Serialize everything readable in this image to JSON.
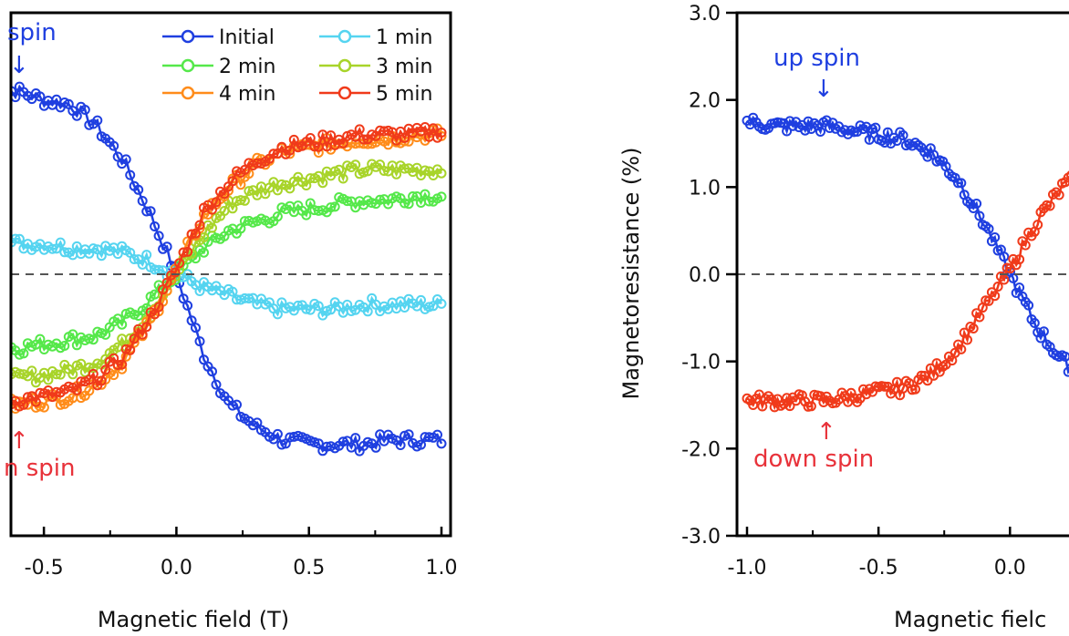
{
  "chart_data": [
    {
      "type": "scatter",
      "panel": "left",
      "xlabel": "Magnetic field (T)",
      "ylabel": "",
      "xlim": [
        -0.7,
        1.0
      ],
      "ylim": [
        -3.0,
        3.0
      ],
      "x_ticks": [
        "-0.5",
        "0.0",
        "0.5",
        "1.0"
      ],
      "zero_line": true,
      "legend": {
        "placement": "top-right",
        "entries": [
          {
            "name": "Initial",
            "color": "#1f3fe0"
          },
          {
            "name": "1 min",
            "color": "#55d4f0"
          },
          {
            "name": "2 min",
            "color": "#55e84a"
          },
          {
            "name": "3 min",
            "color": "#a8d42a"
          },
          {
            "name": "4 min",
            "color": "#ff8c1a"
          },
          {
            "name": "5 min",
            "color": "#f03a1a"
          }
        ]
      },
      "annotations": [
        {
          "text": "spin",
          "arrow": "↓",
          "color": "#1f3fe0"
        },
        {
          "text": "n spin",
          "arrow": "↑",
          "color": "#e8323a"
        }
      ],
      "series": [
        {
          "name": "Initial",
          "color": "#1f3fe0",
          "x": [
            -0.7,
            -0.6,
            -0.5,
            -0.4,
            -0.3,
            -0.2,
            -0.1,
            0.0,
            0.1,
            0.2,
            0.3,
            0.4,
            0.5,
            0.6,
            0.7,
            0.8,
            0.9,
            1.0
          ],
          "y": [
            2.1,
            2.1,
            2.0,
            1.95,
            1.7,
            1.3,
            0.7,
            0.0,
            -0.9,
            -1.5,
            -1.75,
            -1.9,
            -1.95,
            -1.95,
            -1.95,
            -1.9,
            -1.9,
            -1.9
          ]
        },
        {
          "name": "1 min",
          "color": "#55d4f0",
          "x": [
            -0.7,
            -0.6,
            -0.5,
            -0.4,
            -0.3,
            -0.2,
            -0.1,
            0.0,
            0.1,
            0.2,
            0.3,
            0.4,
            0.5,
            0.6,
            0.7,
            0.8,
            0.9,
            1.0
          ],
          "y": [
            0.4,
            0.35,
            0.35,
            0.3,
            0.3,
            0.25,
            0.15,
            0.0,
            -0.15,
            -0.25,
            -0.35,
            -0.4,
            -0.4,
            -0.4,
            -0.35,
            -0.35,
            -0.35,
            -0.35
          ]
        },
        {
          "name": "2 min",
          "color": "#55e84a",
          "x": [
            -0.7,
            -0.6,
            -0.5,
            -0.4,
            -0.3,
            -0.2,
            -0.1,
            0.0,
            0.1,
            0.2,
            0.3,
            0.4,
            0.5,
            0.6,
            0.7,
            0.8,
            0.9,
            1.0
          ],
          "y": [
            -0.8,
            -0.85,
            -0.8,
            -0.75,
            -0.7,
            -0.55,
            -0.3,
            0.0,
            0.3,
            0.5,
            0.6,
            0.7,
            0.75,
            0.8,
            0.85,
            0.85,
            0.9,
            0.9
          ]
        },
        {
          "name": "3 min",
          "color": "#a8d42a",
          "x": [
            -0.7,
            -0.6,
            -0.5,
            -0.4,
            -0.3,
            -0.2,
            -0.1,
            0.0,
            0.1,
            0.2,
            0.3,
            0.4,
            0.5,
            0.6,
            0.7,
            0.8,
            0.9,
            1.0
          ],
          "y": [
            -1.2,
            -1.2,
            -1.15,
            -1.1,
            -1.0,
            -0.8,
            -0.45,
            0.0,
            0.45,
            0.8,
            0.95,
            1.05,
            1.1,
            1.15,
            1.2,
            1.2,
            1.2,
            1.2
          ]
        },
        {
          "name": "4 min",
          "color": "#ff8c1a",
          "x": [
            -0.7,
            -0.6,
            -0.5,
            -0.4,
            -0.3,
            -0.2,
            -0.1,
            0.0,
            0.1,
            0.2,
            0.3,
            0.4,
            0.5,
            0.6,
            0.7,
            0.8,
            0.9,
            1.0
          ],
          "y": [
            -1.5,
            -1.5,
            -1.45,
            -1.4,
            -1.25,
            -1.0,
            -0.55,
            0.05,
            0.65,
            1.0,
            1.25,
            1.4,
            1.45,
            1.5,
            1.55,
            1.55,
            1.6,
            1.6
          ]
        },
        {
          "name": "5 min",
          "color": "#f03a1a",
          "x": [
            -0.7,
            -0.6,
            -0.5,
            -0.4,
            -0.3,
            -0.2,
            -0.1,
            0.0,
            0.1,
            0.2,
            0.3,
            0.4,
            0.5,
            0.6,
            0.7,
            0.8,
            0.9,
            1.0
          ],
          "y": [
            -1.45,
            -1.45,
            -1.4,
            -1.35,
            -1.2,
            -0.95,
            -0.5,
            0.05,
            0.7,
            1.05,
            1.3,
            1.45,
            1.5,
            1.55,
            1.6,
            1.6,
            1.6,
            1.65
          ]
        }
      ]
    },
    {
      "type": "scatter",
      "panel": "right",
      "xlabel": "Magnetic fielc",
      "ylabel": "Magnetoresistance (%)",
      "xlim": [
        -1.0,
        0.28
      ],
      "ylim": [
        -3.0,
        3.0
      ],
      "x_ticks": [
        "-1.0",
        "-0.5",
        "0.0"
      ],
      "y_ticks": [
        "3.0",
        "2.0",
        "1.0",
        "0.0",
        "-1.0",
        "-2.0",
        "-3.0"
      ],
      "zero_line": true,
      "annotations": [
        {
          "text": "up spin",
          "arrow": "↓",
          "color": "#1f3fe0"
        },
        {
          "text": "down spin",
          "arrow": "↑",
          "color": "#e8323a"
        }
      ],
      "series": [
        {
          "color": "#1f3fe0",
          "x": [
            -1.0,
            -0.9,
            -0.8,
            -0.7,
            -0.6,
            -0.5,
            -0.4,
            -0.3,
            -0.2,
            -0.1,
            0.0,
            0.1,
            0.2,
            0.28
          ],
          "y": [
            1.75,
            1.7,
            1.7,
            1.7,
            1.65,
            1.6,
            1.55,
            1.4,
            1.1,
            0.6,
            0.0,
            -0.6,
            -1.0,
            -1.15
          ]
        },
        {
          "color": "#f03a1a",
          "x": [
            -1.0,
            -0.9,
            -0.8,
            -0.7,
            -0.6,
            -0.5,
            -0.4,
            -0.3,
            -0.2,
            -0.1,
            0.0,
            0.1,
            0.2,
            0.28
          ],
          "y": [
            -1.45,
            -1.45,
            -1.45,
            -1.45,
            -1.4,
            -1.35,
            -1.3,
            -1.15,
            -0.85,
            -0.4,
            0.05,
            0.6,
            1.0,
            1.15
          ]
        }
      ]
    }
  ]
}
